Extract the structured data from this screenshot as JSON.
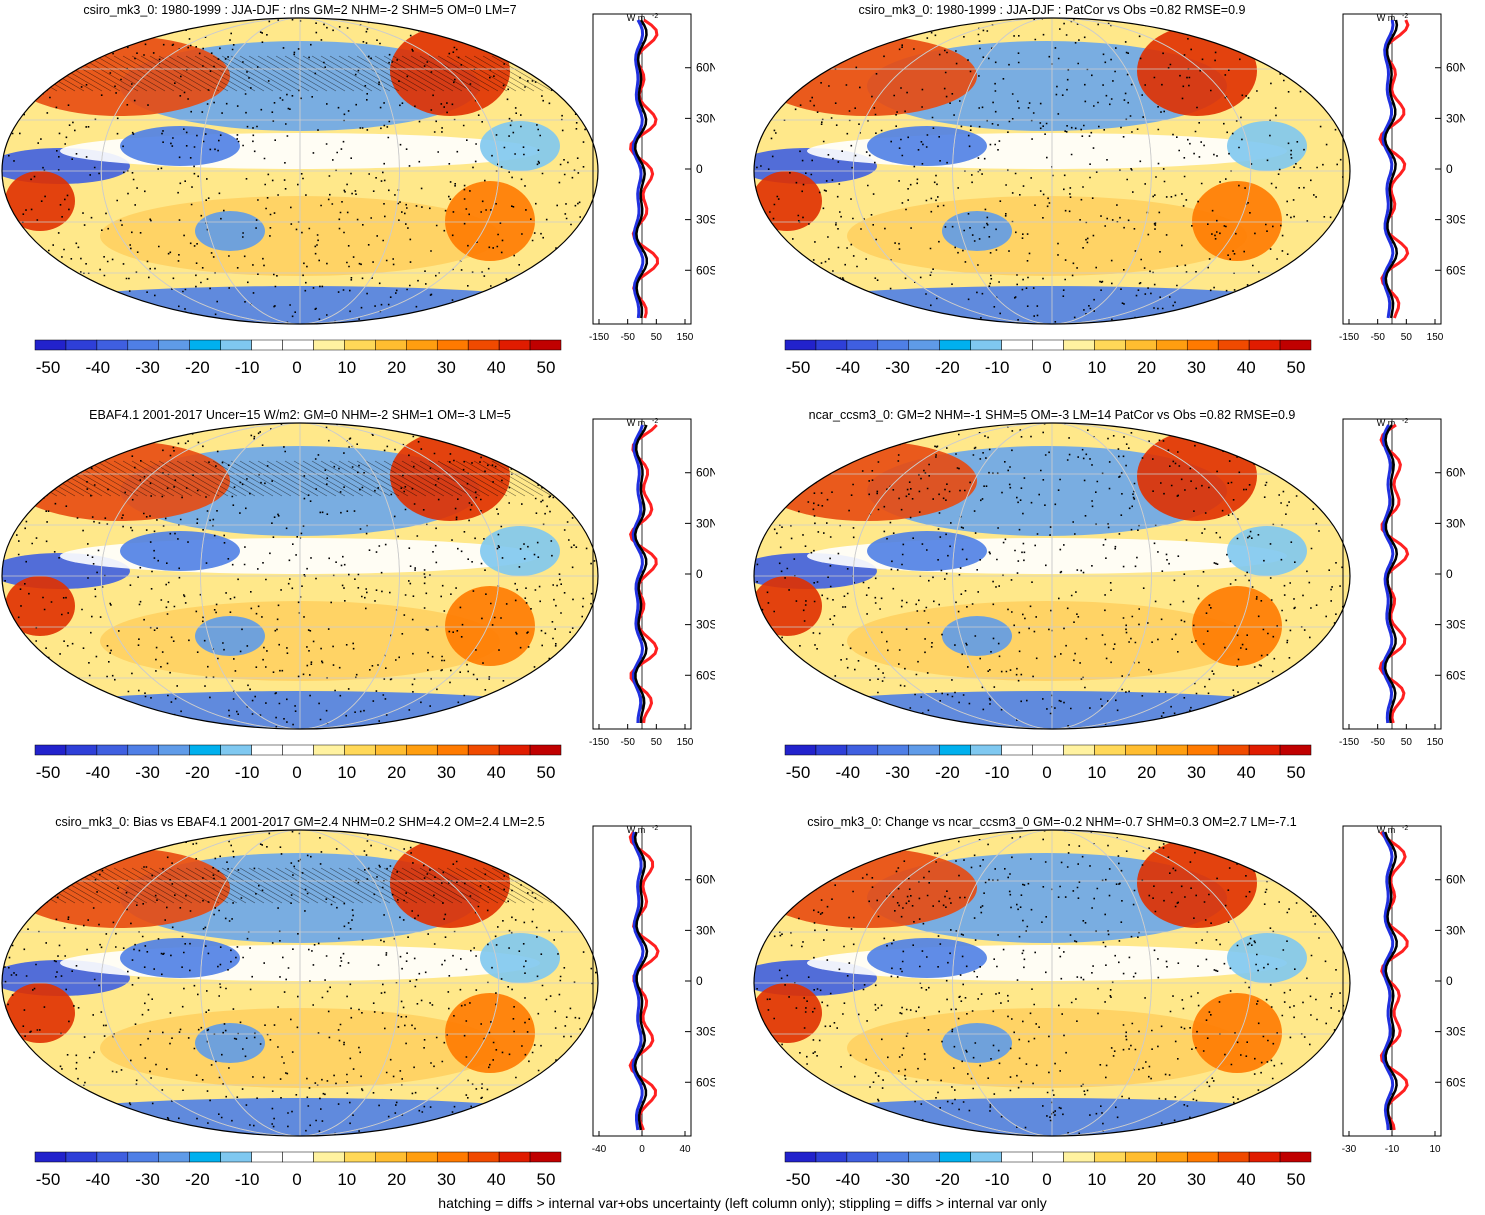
{
  "colorbar": {
    "labels": [
      "-50",
      "-40",
      "-30",
      "-20",
      "-10",
      "0",
      "10",
      "20",
      "30",
      "40",
      "50"
    ],
    "colors": [
      "#2222cc",
      "#2e3fd8",
      "#3f5fe0",
      "#4f7fe6",
      "#5f9be8",
      "#00b0ee",
      "#7fc8f0",
      "#ffffff",
      "#ffffff",
      "#fff2a0",
      "#ffd858",
      "#ffbd30",
      "#ff9e10",
      "#ff7a00",
      "#f04a00",
      "#e01c00",
      "#c00000"
    ]
  },
  "zonal_unit": "W m",
  "zonal_unit_sup": "-2",
  "lat_labels": [
    "60N",
    "30N",
    "0",
    "30S",
    "60S"
  ],
  "panels": [
    {
      "title": "csiro_mk3_0: 1980-1999 : JJA-DJF : rlns GM=2 NHM=-2 SHM=5 OM=0 LM=7",
      "xticks": [
        "-150",
        "-50",
        "50",
        "150"
      ],
      "hatch": true
    },
    {
      "title": "csiro_mk3_0: 1980-1999 : JJA-DJF : PatCor vs Obs =0.82 RMSE=0.9",
      "xticks": [
        "-150",
        "-50",
        "50",
        "150"
      ],
      "hatch": false
    },
    {
      "title": "EBAF4.1 2001-2017 Uncer=15 W/m2: GM=0 NHM=-2 SHM=1 OM=-3 LM=5",
      "xticks": [
        "-150",
        "-50",
        "50",
        "150"
      ],
      "hatch": true
    },
    {
      "title": "ncar_ccsm3_0: GM=2 NHM=-1 SHM=5 OM=-3 LM=14 PatCor vs Obs =0.82 RMSE=0.9",
      "xticks": [
        "-150",
        "-50",
        "50",
        "150"
      ],
      "hatch": false
    },
    {
      "title": "csiro_mk3_0: Bias vs EBAF4.1 2001-2017 GM=2.4 NHM=0.2 SHM=4.2 OM=2.4 LM=2.5",
      "xticks": [
        "-40",
        "0",
        "40"
      ],
      "hatch": true
    },
    {
      "title": "csiro_mk3_0: Change vs ncar_ccsm3_0 GM=-0.2 NHM=-0.7 SHM=0.3 OM=2.7 LM=-7.1",
      "xticks": [
        "-30",
        "-10",
        "10"
      ],
      "hatch": false
    }
  ],
  "footer": "hatching = diffs > internal var+obs uncertainty (left column only); stippling = diffs > internal var only"
}
